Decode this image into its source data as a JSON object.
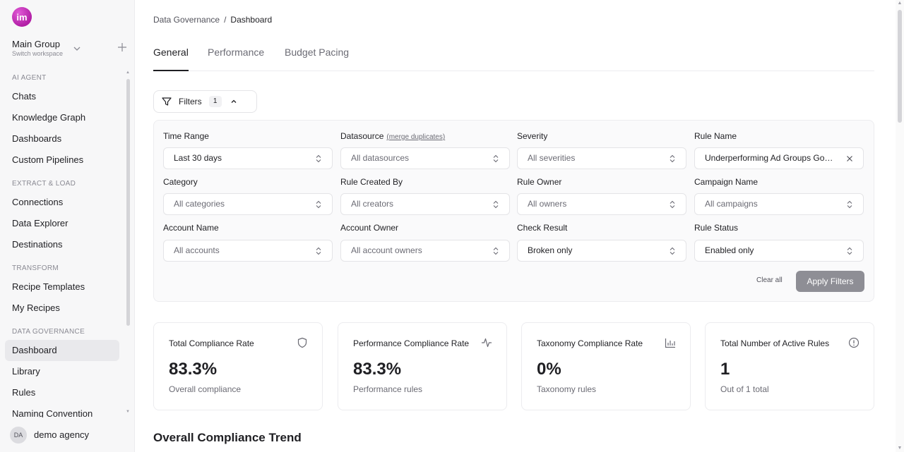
{
  "sidebar": {
    "logo_text": "im",
    "workspace": {
      "name": "Main Group",
      "sub": "Switch workspace"
    },
    "sections": [
      {
        "title": "AI AGENT",
        "items": [
          "Chats",
          "Knowledge Graph",
          "Dashboards",
          "Custom Pipelines"
        ]
      },
      {
        "title": "EXTRACT & LOAD",
        "items": [
          "Connections",
          "Data Explorer",
          "Destinations"
        ]
      },
      {
        "title": "TRANSFORM",
        "items": [
          "Recipe Templates",
          "My Recipes"
        ]
      },
      {
        "title": "DATA GOVERNANCE",
        "items": [
          "Dashboard",
          "Library",
          "Rules",
          "Naming Convention"
        ]
      }
    ],
    "active_item": "Dashboard",
    "user": {
      "initials": "DA",
      "name": "demo agency"
    }
  },
  "breadcrumb": {
    "parent": "Data Governance",
    "separator": "/",
    "current": "Dashboard"
  },
  "tabs": [
    {
      "label": "General",
      "active": true
    },
    {
      "label": "Performance",
      "active": false
    },
    {
      "label": "Budget Pacing",
      "active": false
    }
  ],
  "filters": {
    "label": "Filters",
    "count": "1",
    "fields": [
      {
        "label": "Time Range",
        "value": "Last 30 days",
        "style": "strong-r"
      },
      {
        "label": "Datasource",
        "link": "(merge duplicates)",
        "value": "All datasources",
        "style": ""
      },
      {
        "label": "Severity",
        "value": "All severities",
        "style": ""
      },
      {
        "label": "Rule Name",
        "value": "Underperforming Ad Groups Google Ads",
        "style": "strong-r",
        "clearable": true
      },
      {
        "label": "Category",
        "value": "All categories",
        "style": ""
      },
      {
        "label": "Rule Created By",
        "value": "All creators",
        "style": ""
      },
      {
        "label": "Rule Owner",
        "value": "All owners",
        "style": ""
      },
      {
        "label": "Campaign Name",
        "value": "All campaigns",
        "style": ""
      },
      {
        "label": "Account Name",
        "value": "All accounts",
        "style": ""
      },
      {
        "label": "Account Owner",
        "value": "All account owners",
        "style": ""
      },
      {
        "label": "Check Result",
        "value": "Broken only",
        "style": "strong-r"
      },
      {
        "label": "Rule Status",
        "value": "Enabled only",
        "style": "strong-r"
      }
    ],
    "clear_all": "Clear all",
    "apply": "Apply Filters"
  },
  "cards": [
    {
      "title": "Total Compliance Rate",
      "value": "83.3%",
      "sub": "Overall compliance",
      "icon": "shield-icon"
    },
    {
      "title": "Performance Compliance Rate",
      "value": "83.3%",
      "sub": "Performance rules",
      "icon": "activity-icon"
    },
    {
      "title": "Taxonomy Compliance Rate",
      "value": "0%",
      "sub": "Taxonomy rules",
      "icon": "bar-chart-icon"
    },
    {
      "title": "Total Number of Active Rules",
      "value": "1",
      "sub": "Out of 1 total",
      "icon": "info-circle-icon"
    }
  ],
  "trend_title": "Overall Compliance Trend"
}
